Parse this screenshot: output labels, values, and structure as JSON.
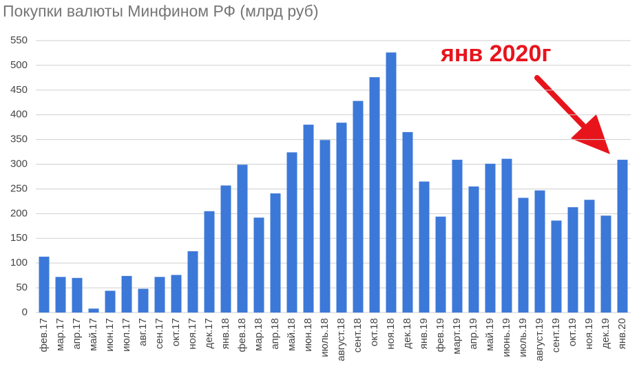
{
  "chart_data": {
    "type": "bar",
    "title": "Покупки валюты Минфином РФ (млрд руб)",
    "annotation": "янв 2020г",
    "categories": [
      "фев.17",
      "мар.17",
      "апр.17",
      "май.17",
      "июн.17",
      "июл.17",
      "авг.17",
      "сен.17",
      "окт.17",
      "ноя.17",
      "дек.17",
      "янв.18",
      "фев.18",
      "мар.18",
      "апр.18",
      "май.18",
      "июн.18",
      "июль.18",
      "август.18",
      "сент.18",
      "окт.18",
      "ноя.18",
      "дек.18",
      "янв.19",
      "фев.19",
      "март.19",
      "апр.19",
      "май.19",
      "июнь.19",
      "июль.19",
      "август.19",
      "сент.19",
      "окт.19",
      "ноя.19",
      "дек.19",
      "янв.20"
    ],
    "values": [
      113,
      72,
      70,
      8,
      44,
      74,
      48,
      72,
      76,
      124,
      205,
      257,
      299,
      192,
      241,
      324,
      380,
      349,
      384,
      428,
      476,
      526,
      365,
      265,
      194,
      309,
      255,
      301,
      311,
      232,
      247,
      186,
      213,
      228,
      196,
      309
    ],
    "color": "#3c78d8",
    "ylim": [
      0,
      550
    ],
    "yticks": [
      0,
      50,
      100,
      150,
      200,
      250,
      300,
      350,
      400,
      450,
      500,
      550
    ],
    "grid": true
  }
}
